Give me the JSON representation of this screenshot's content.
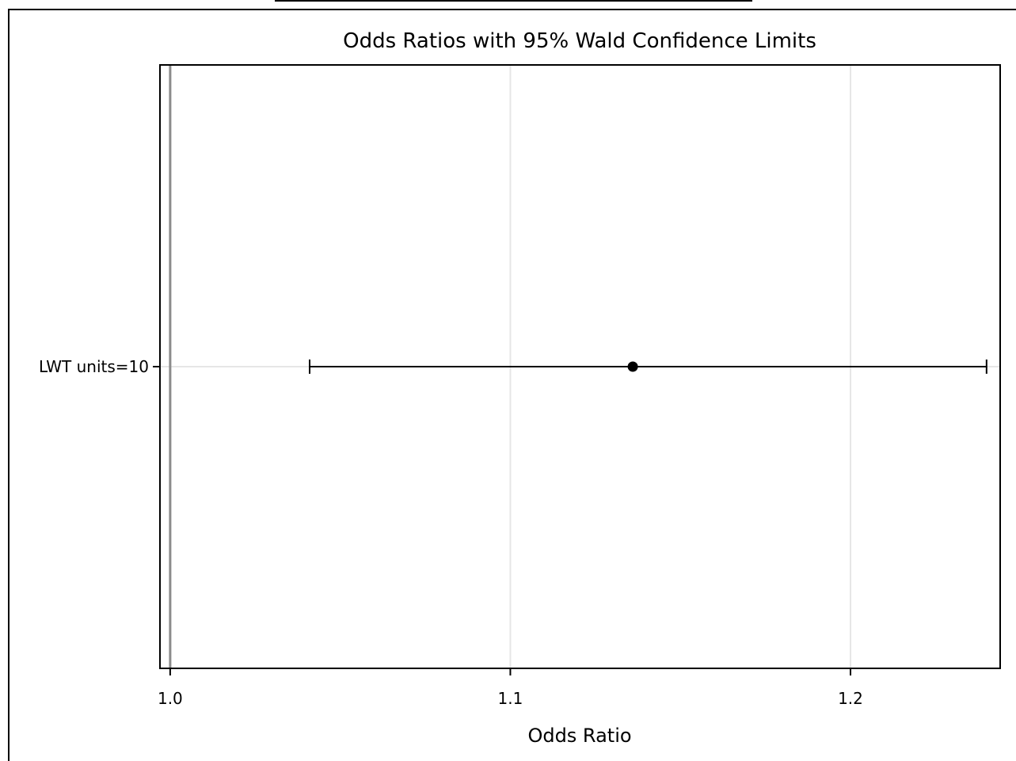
{
  "chart_data": {
    "type": "scatter",
    "title": "Odds Ratios with 95% Wald Confidence Limits",
    "xlabel": "Odds Ratio",
    "ylabel": "",
    "xlim": [
      0.997,
      1.244
    ],
    "xticks": [
      {
        "value": 1.0,
        "label": "1.0"
      },
      {
        "value": 1.1,
        "label": "1.1"
      },
      {
        "value": 1.2,
        "label": "1.2"
      }
    ],
    "reference_line": 1.0,
    "grid": true,
    "categories": [
      "LWT units=10"
    ],
    "points": [
      {
        "label": "LWT units=10",
        "estimate": 1.136,
        "lower": 1.041,
        "upper": 1.24
      }
    ],
    "colors": {
      "marker": "#000000",
      "grid": "#e6e6e6",
      "reference": "#8c8c8c",
      "frame": "#000000"
    }
  }
}
